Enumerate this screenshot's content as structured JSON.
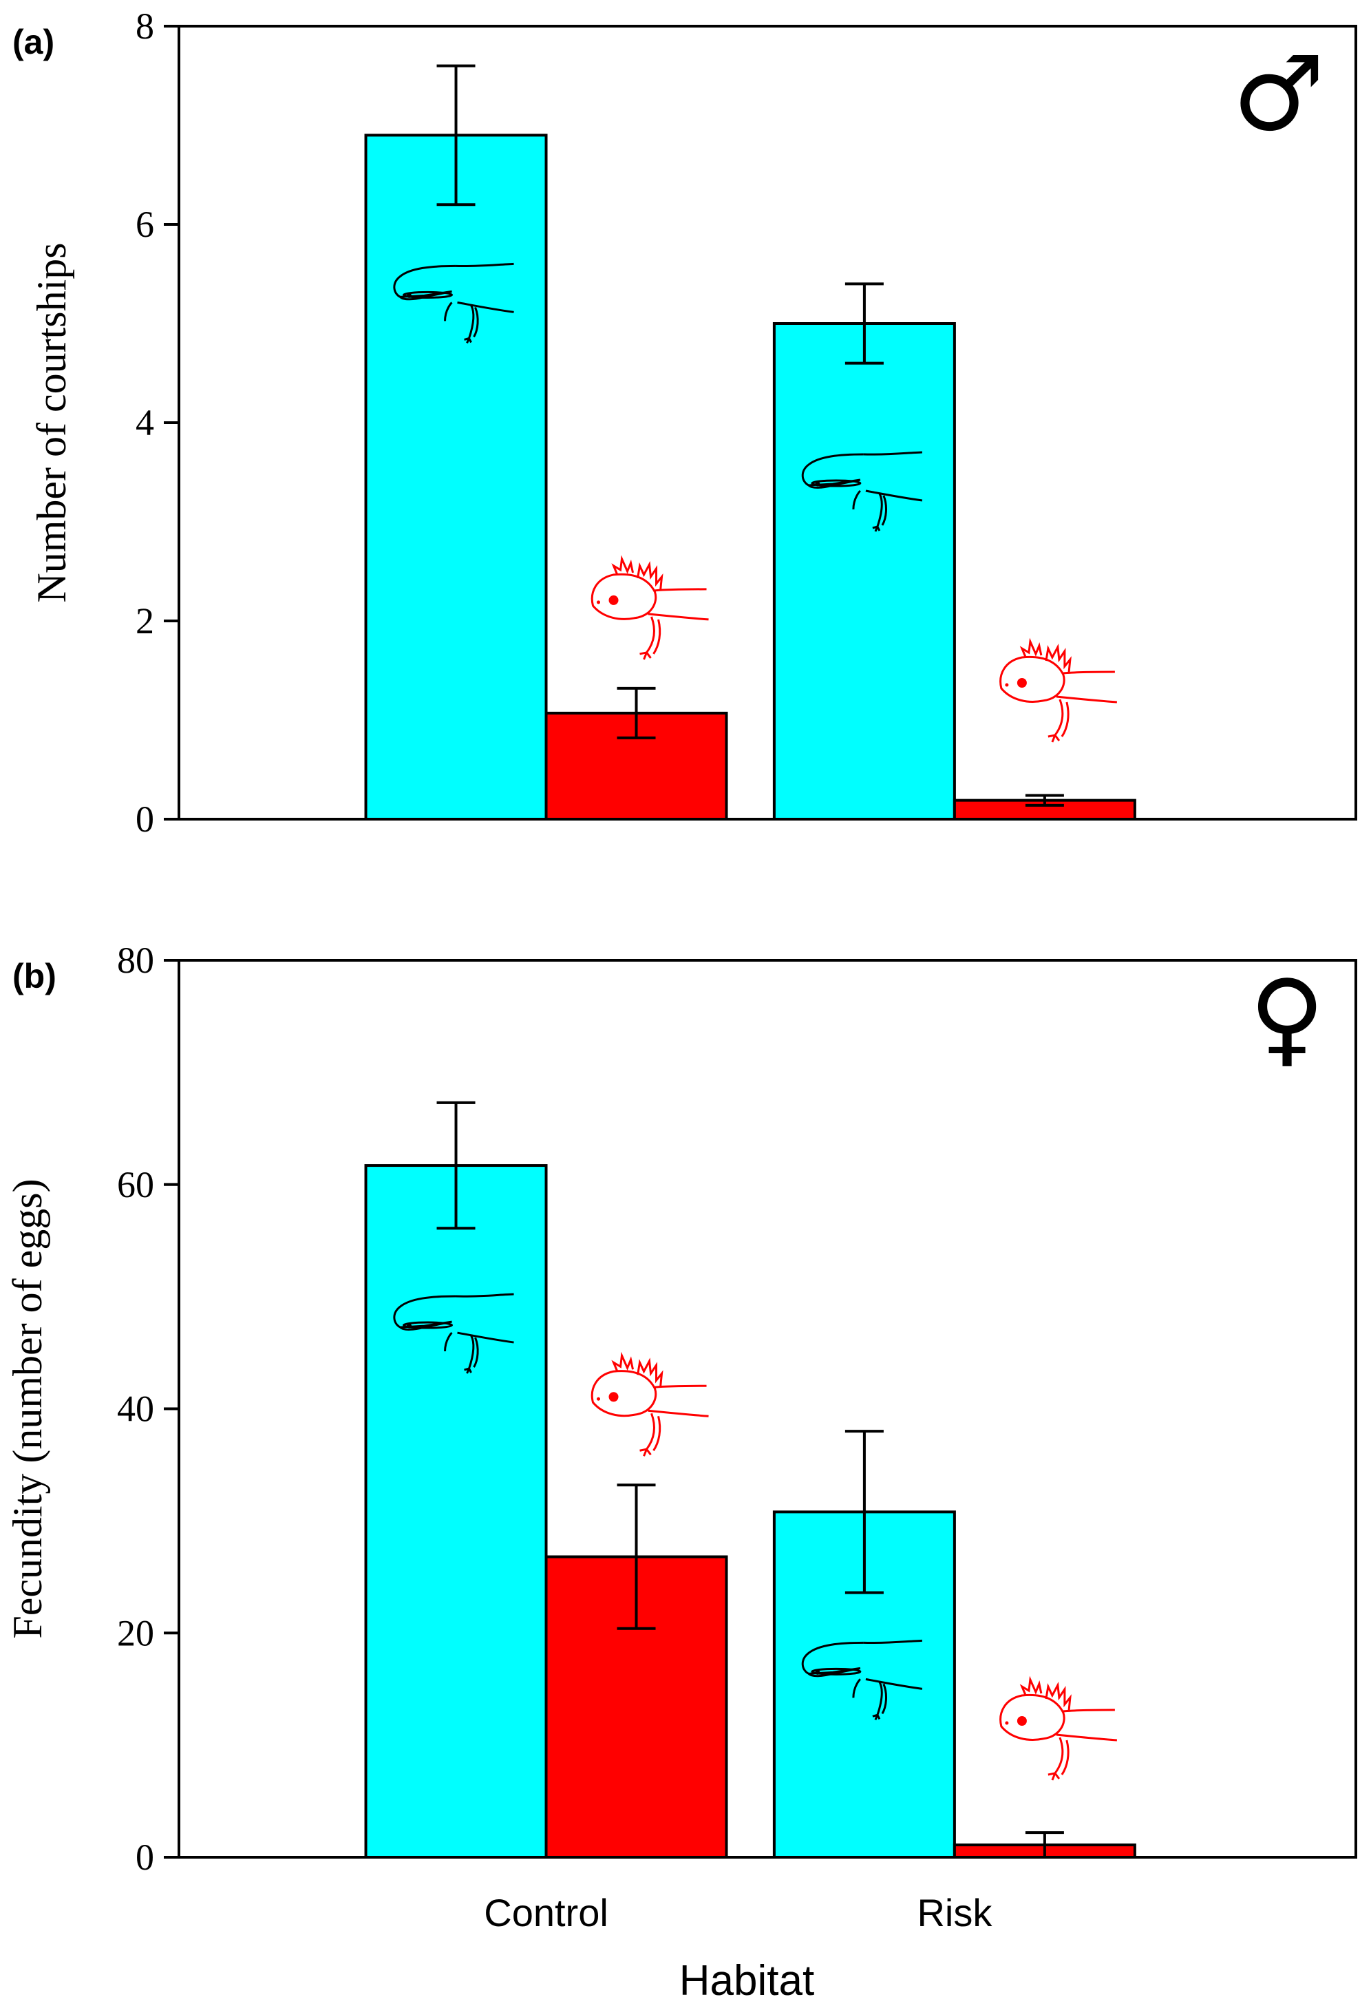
{
  "colors": {
    "morph_a": "#00FFFF",
    "morph_b": "#FF0000",
    "axis": "#000000"
  },
  "icons": {
    "morph_a": "salamander-cyan-morph-icon",
    "morph_b": "axolotl-red-morph-icon"
  },
  "chart_data": [
    {
      "type": "bar",
      "panel_label": "(a)",
      "corner_symbol": "♂",
      "title": "",
      "xlabel": "",
      "ylabel": "Number of courtships",
      "ylim": [
        0,
        8
      ],
      "yticks": [
        "0",
        "2",
        "4",
        "6",
        "8"
      ],
      "categories": [
        "Control",
        "Risk"
      ],
      "series": [
        {
          "values": [
            6.9,
            5.0
          ],
          "error": [
            0.7,
            0.4
          ],
          "color": "#00FFFF"
        },
        {
          "values": [
            1.07,
            0.19
          ],
          "error": [
            0.25,
            0.05
          ],
          "color": "#FF0000"
        }
      ],
      "grid": false,
      "legend": "none"
    },
    {
      "type": "bar",
      "panel_label": "(b)",
      "corner_symbol": "♀",
      "title": "",
      "xlabel": "Habitat",
      "ylabel": "Fecundity (number of eggs)",
      "ylim": [
        0,
        80
      ],
      "yticks": [
        "0",
        "20",
        "40",
        "60",
        "80"
      ],
      "categories": [
        "Control",
        "Risk"
      ],
      "series": [
        {
          "values": [
            61.7,
            30.8
          ],
          "error": [
            5.6,
            7.2
          ],
          "color": "#00FFFF"
        },
        {
          "values": [
            26.8,
            1.1
          ],
          "error": [
            6.4,
            1.1
          ],
          "color": "#FF0000"
        }
      ],
      "grid": false,
      "legend": "none"
    }
  ]
}
